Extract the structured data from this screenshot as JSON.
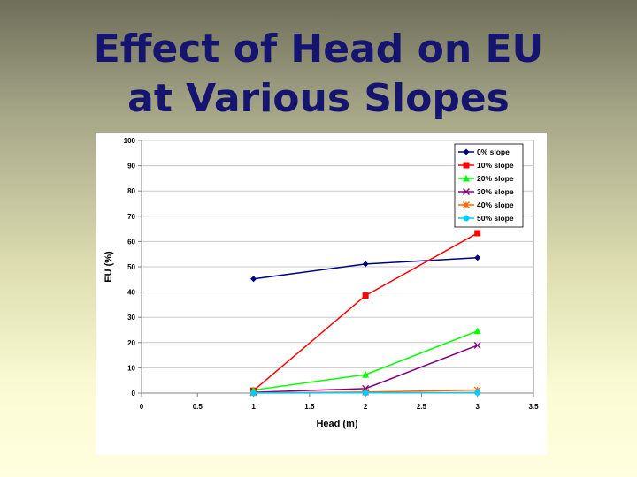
{
  "slide": {
    "title_line1": "Effect of Head on EU",
    "title_line2": "at Various Slopes"
  },
  "chart_data": {
    "type": "line",
    "title": "",
    "xlabel": "Head (m)",
    "ylabel": "EU (%)",
    "xlim": [
      0,
      3.5
    ],
    "ylim": [
      0,
      100
    ],
    "xticks": [
      "0",
      "0.5",
      "1",
      "1.5",
      "2",
      "2.5",
      "3",
      "3.5"
    ],
    "yticks": [
      "0",
      "10",
      "20",
      "30",
      "40",
      "50",
      "60",
      "70",
      "80",
      "90",
      "100"
    ],
    "grid": "horizontal",
    "legend_position": "top-right",
    "x": [
      1,
      2,
      3
    ],
    "series": [
      {
        "name": "0% slope",
        "values": [
          45.2,
          51.1,
          53.6
        ],
        "color": "#000080",
        "marker": "diamond"
      },
      {
        "name": "10% slope",
        "values": [
          1.0,
          38.6,
          63.3
        ],
        "color": "#ff0000",
        "marker": "square"
      },
      {
        "name": "20% slope",
        "values": [
          1.2,
          7.3,
          24.6
        ],
        "color": "#00ff00",
        "marker": "triangle"
      },
      {
        "name": "30% slope",
        "values": [
          0.3,
          1.8,
          18.9
        ],
        "color": "#800080",
        "marker": "x"
      },
      {
        "name": "40% slope",
        "values": [
          0.1,
          0.4,
          1.2
        ],
        "color": "#ff6600",
        "marker": "star"
      },
      {
        "name": "50% slope",
        "values": [
          0.0,
          0.1,
          0.2
        ],
        "color": "#00ccff",
        "marker": "circle"
      }
    ]
  }
}
